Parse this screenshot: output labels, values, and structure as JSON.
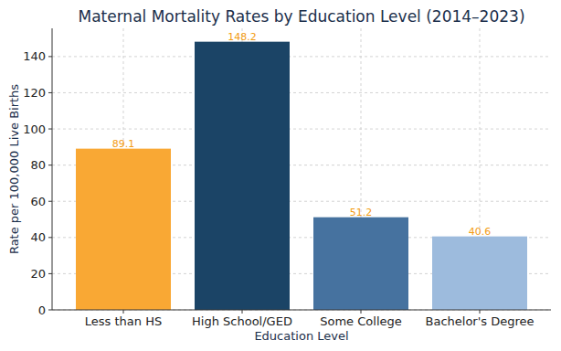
{
  "chart_data": {
    "type": "bar",
    "title": "Maternal Mortality Rates by Education Level (2014–2023)",
    "x_label": "Education Level",
    "y_label": "Rate per 100,000 Live Births",
    "categories": [
      "Less than HS",
      "High School/GED",
      "Some College",
      "Bachelor's Degree"
    ],
    "values": [
      89.1,
      148.2,
      51.2,
      40.6
    ],
    "colors": [
      "#f9a834",
      "#1b4466",
      "#46729f",
      "#9dbbdd"
    ],
    "ylim": [
      0,
      155.6
    ],
    "yticks": [
      0,
      20,
      40,
      60,
      80,
      100,
      120,
      140
    ],
    "grid": true,
    "data_labels": true
  }
}
